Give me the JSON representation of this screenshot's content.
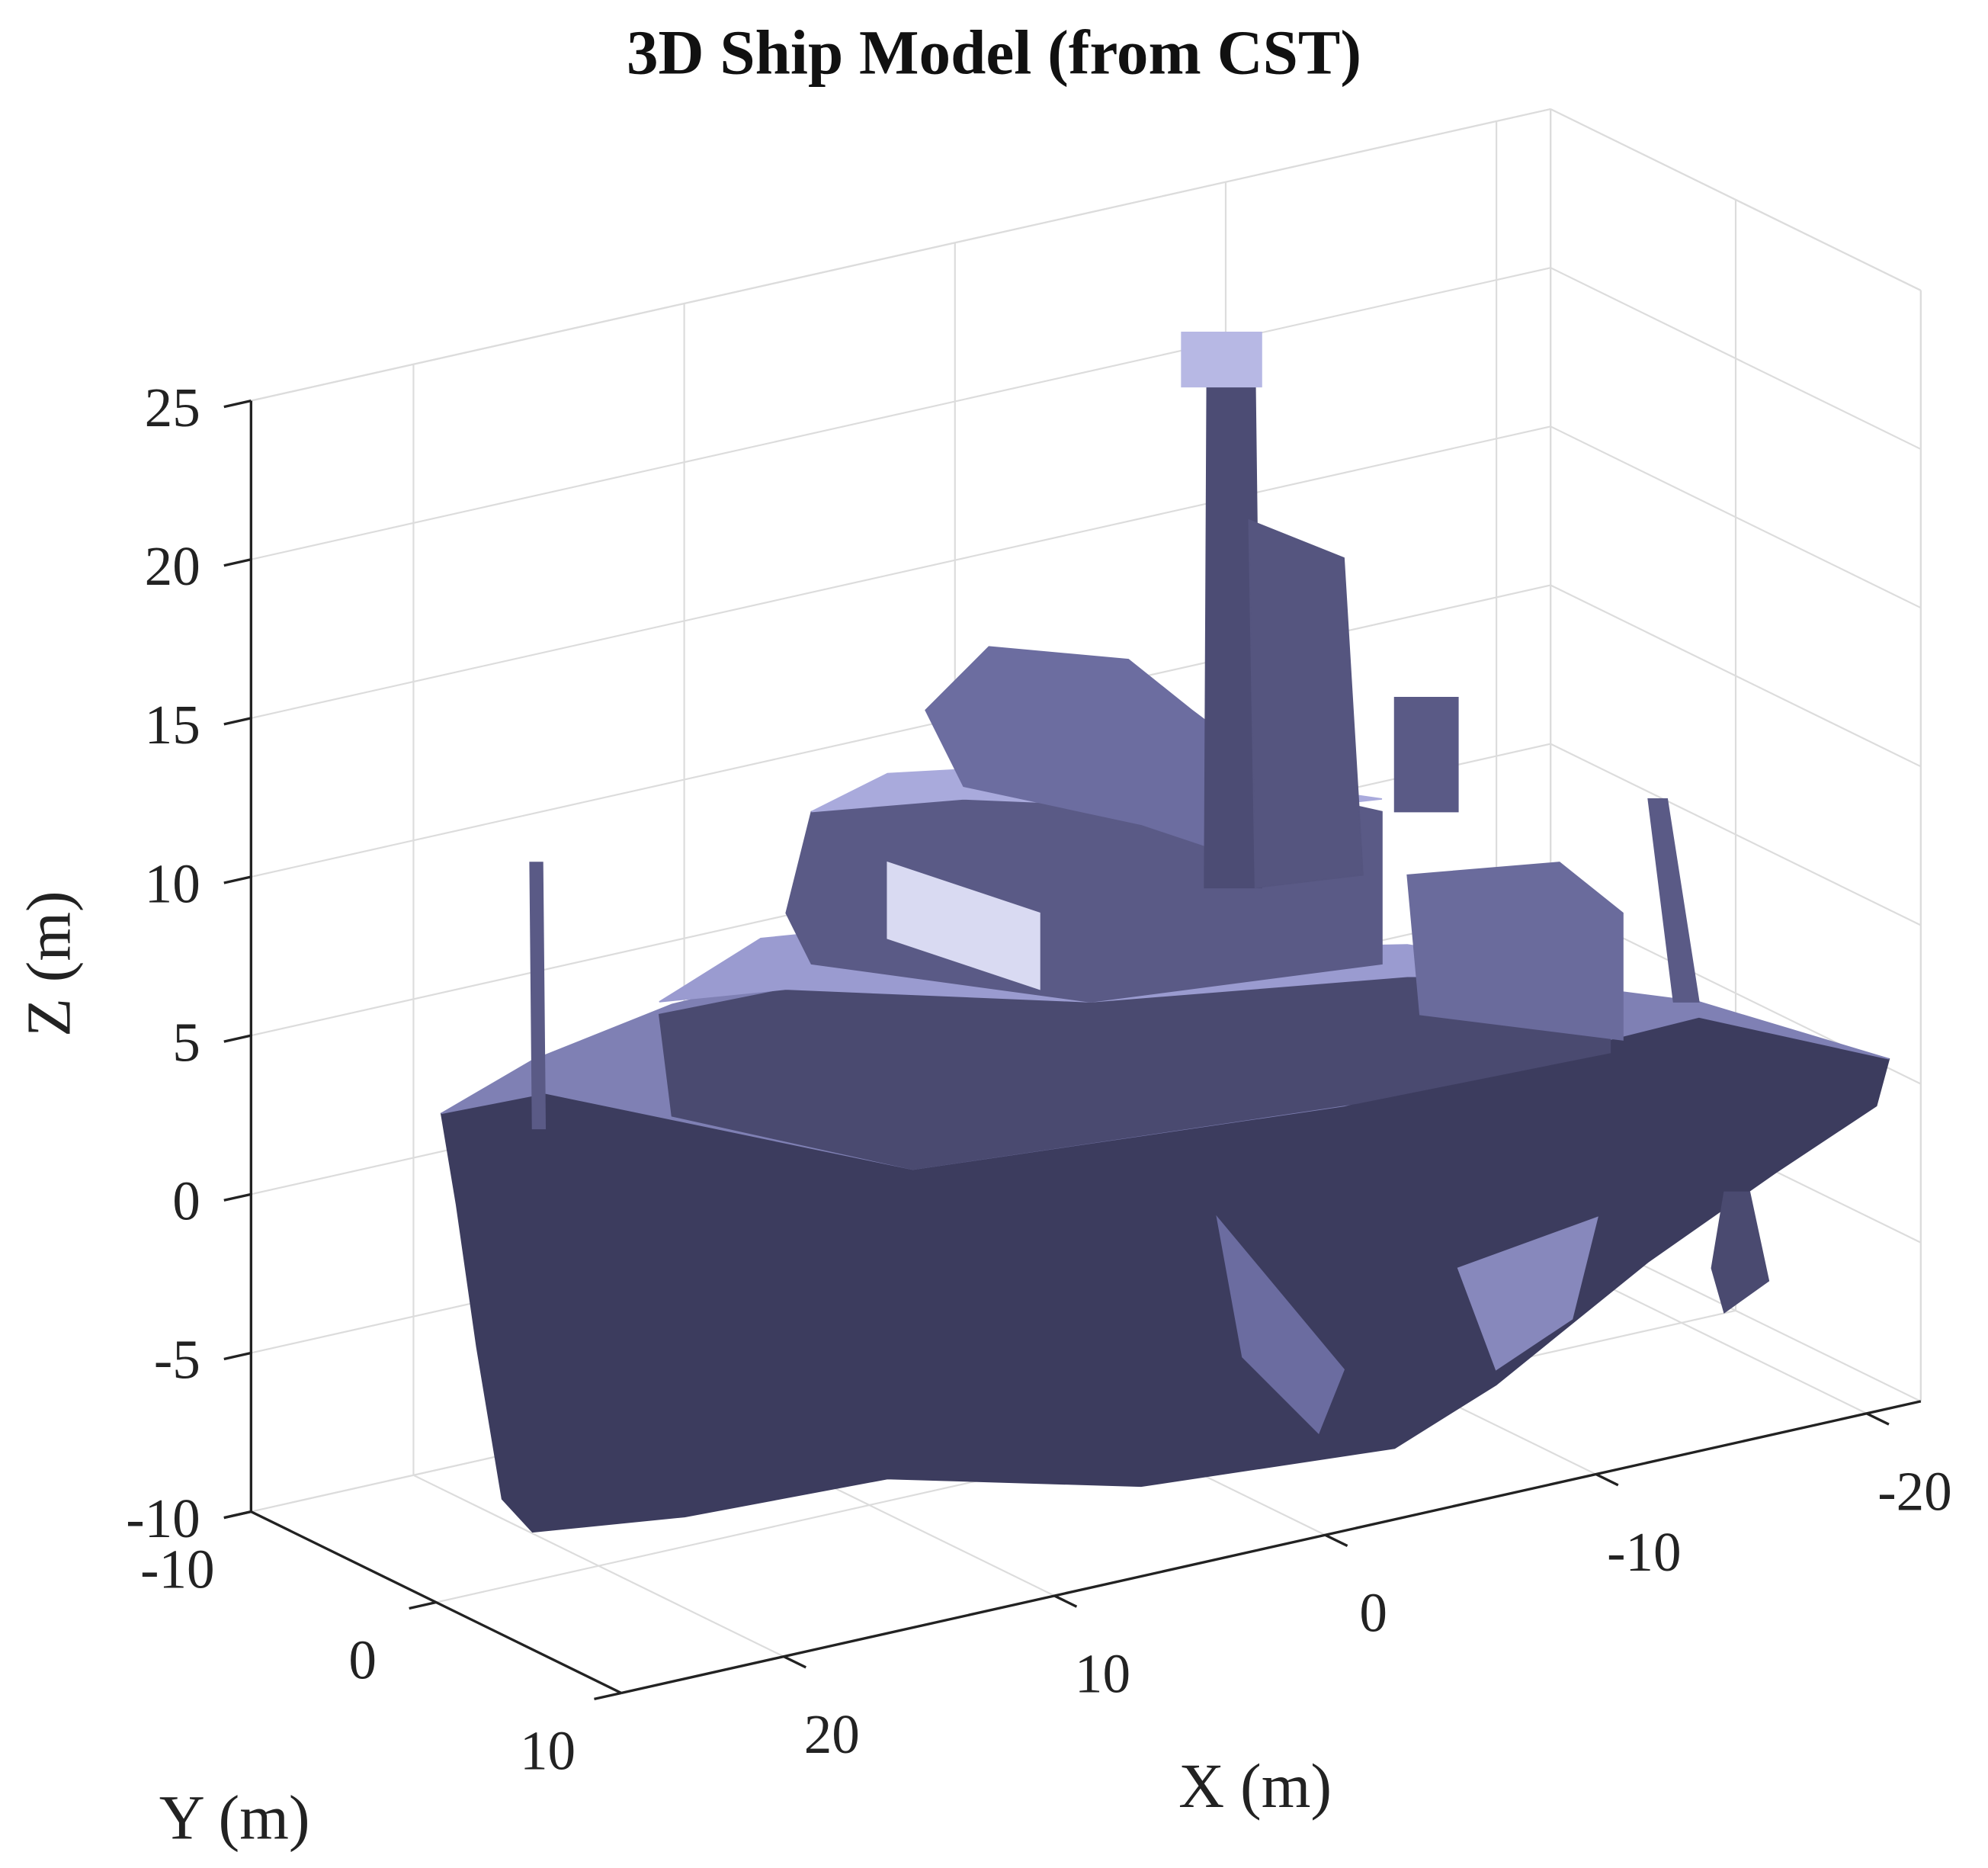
{
  "chart_data": {
    "type": "mesh3d",
    "title": "3D Ship Model (from CST)",
    "xlabel": "X (m)",
    "ylabel": "Y (m)",
    "zlabel": "Z (m)",
    "xlim": [
      -22,
      26
    ],
    "ylim": [
      -10,
      10
    ],
    "zlim": [
      -10,
      25
    ],
    "xticks": [
      -20,
      -10,
      0,
      10,
      20
    ],
    "yticks": [
      -10,
      0,
      10
    ],
    "zticks": [
      -10,
      -5,
      0,
      5,
      10,
      15,
      20,
      25
    ],
    "grid": true,
    "color": "#3c3c5e"
  }
}
